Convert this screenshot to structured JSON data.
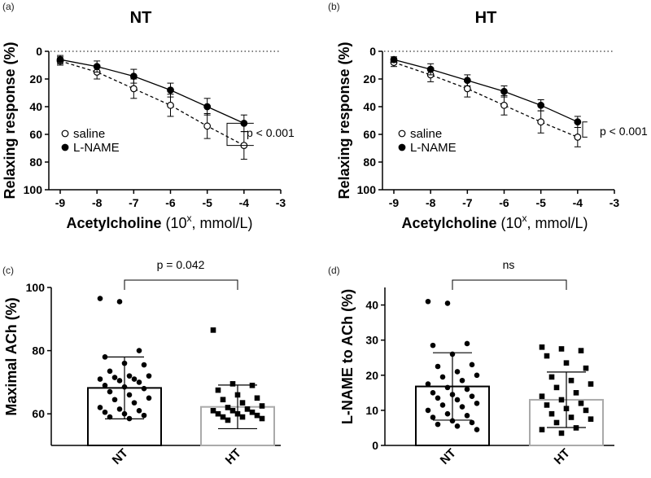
{
  "chart_data": [
    {
      "panel": "(a)",
      "type": "line",
      "title": "NT",
      "xlabel_bold": "Acetylcholine",
      "xlabel_rest": " (10",
      "xlabel_sup": "x",
      "xlabel_tail": ", mmol/L)",
      "ylabel": "Relaxing response (%)",
      "x": [
        -9,
        -8,
        -7,
        -6,
        -5,
        -4
      ],
      "xticks": [
        -9,
        -8,
        -7,
        -6,
        -5,
        -4,
        -3
      ],
      "yticks": [
        0,
        20,
        40,
        60,
        80,
        100
      ],
      "ylim": [
        0,
        100
      ],
      "y_inverted": true,
      "series": [
        {
          "name": "saline",
          "marker": "open-circle",
          "line": "dashed",
          "values": [
            7,
            15,
            27,
            39,
            54,
            68
          ],
          "errors": [
            3,
            5,
            7,
            8,
            9,
            10
          ]
        },
        {
          "name": "L-NAME",
          "marker": "filled-circle",
          "line": "solid",
          "values": [
            6,
            11,
            18,
            28,
            40,
            52
          ],
          "errors": [
            3,
            4,
            5,
            5,
            6,
            6
          ]
        }
      ],
      "annotation": "p < 0.001"
    },
    {
      "panel": "(b)",
      "type": "line",
      "title": "HT",
      "xlabel_bold": "Acetylcholine",
      "xlabel_rest": " (10",
      "xlabel_sup": "x",
      "xlabel_tail": ", mmol/L)",
      "ylabel": "Relaxing response (%)",
      "x": [
        -9,
        -8,
        -7,
        -6,
        -5,
        -4
      ],
      "xticks": [
        -9,
        -8,
        -7,
        -6,
        -5,
        -4,
        -3
      ],
      "yticks": [
        0,
        20,
        40,
        60,
        80,
        100
      ],
      "ylim": [
        0,
        100
      ],
      "y_inverted": true,
      "series": [
        {
          "name": "saline",
          "marker": "open-circle",
          "line": "dashed",
          "values": [
            8,
            17,
            27,
            39,
            51,
            62
          ],
          "errors": [
            3,
            5,
            6,
            7,
            8,
            7
          ]
        },
        {
          "name": "L-NAME",
          "marker": "filled-circle",
          "line": "solid",
          "values": [
            6,
            13,
            21,
            29,
            39,
            51
          ],
          "errors": [
            2,
            4,
            4,
            4,
            4,
            4
          ]
        }
      ],
      "annotation": "p < 0.001"
    },
    {
      "panel": "(c)",
      "type": "bar",
      "ylabel": "Maximal ACh (%)",
      "categories": [
        "NT",
        "HT"
      ],
      "values": [
        68.2,
        62.2
      ],
      "errors": [
        9.8,
        6.9
      ],
      "ylim": [
        50,
        100
      ],
      "yticks": [
        60,
        80,
        100
      ],
      "bar_colors": [
        "#000000",
        "#aaaaaa"
      ],
      "points": [
        [
          96.5,
          95.5,
          80,
          78,
          76,
          75.5,
          73.5,
          72,
          72,
          71.5,
          71,
          71,
          70.5,
          70,
          69,
          68.5,
          68,
          67,
          66,
          65,
          64.5,
          63.5,
          62,
          61.5,
          61,
          60.5,
          60,
          59.5,
          59,
          58.5
        ],
        [
          86.5,
          69.5,
          69,
          67.5,
          66,
          65,
          64.5,
          63.5,
          62.5,
          62,
          61.5,
          61,
          61,
          60.5,
          60,
          60,
          59.5,
          59,
          59,
          58.5,
          58
        ]
      ],
      "annotation": "p = 0.042"
    },
    {
      "panel": "(d)",
      "type": "bar",
      "ylabel": "L-NAME to ACh (%)",
      "categories": [
        "NT",
        "HT"
      ],
      "values": [
        16.8,
        13.0
      ],
      "errors": [
        9.6,
        7.9
      ],
      "ylim": [
        0,
        45
      ],
      "yticks": [
        0,
        10,
        20,
        30,
        40
      ],
      "bar_colors": [
        "#000000",
        "#aaaaaa"
      ],
      "points": [
        [
          41,
          40.5,
          29,
          28.5,
          26,
          23,
          22.5,
          21,
          20,
          19.5,
          18.5,
          17.5,
          16.5,
          16,
          15,
          14.5,
          14,
          13.5,
          13,
          12,
          11.5,
          11,
          10,
          9,
          8.5,
          8,
          7,
          6.5,
          6,
          5.5,
          4.5
        ],
        [
          28,
          27.5,
          27,
          25.5,
          23.5,
          22,
          19.5,
          18.5,
          17.5,
          16.5,
          15,
          14,
          13,
          12,
          11.5,
          10.5,
          10,
          9,
          8,
          7.5,
          6.5,
          5,
          4.5,
          3.5
        ]
      ],
      "annotation": "ns"
    }
  ]
}
